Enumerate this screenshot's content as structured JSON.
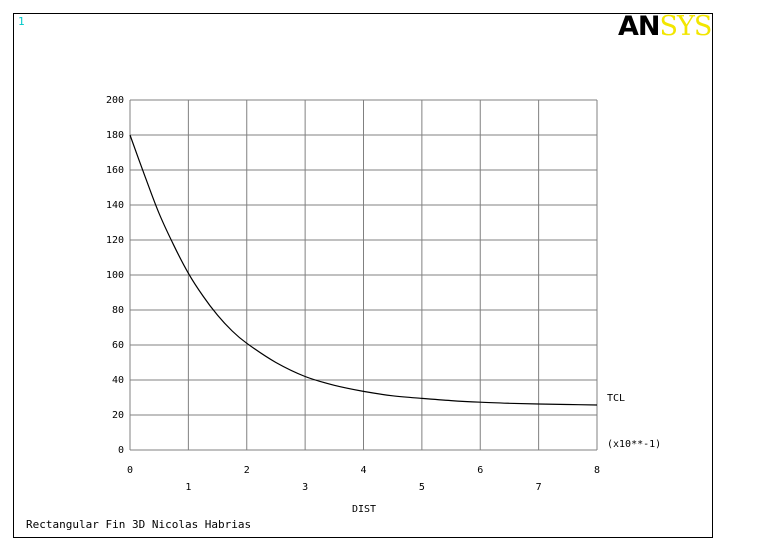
{
  "window_number": "1",
  "logo": {
    "part1": "AN",
    "part2": "SYS",
    "accent_color": "#f2e600"
  },
  "colors": {
    "window_number": "#00c8c8",
    "grid": "#808080",
    "curve": "#000000"
  },
  "footer_caption": "Rectangular Fin 3D Nicolas Habrias",
  "chart_data": {
    "type": "line",
    "xlabel": "DIST",
    "x_multiplier_label": "(x10**-1)",
    "xlim": [
      0,
      8
    ],
    "ylim": [
      0,
      200
    ],
    "x_ticks_upper": [
      "0",
      "2",
      "4",
      "6",
      "8"
    ],
    "x_ticks_lower": [
      "1",
      "3",
      "5",
      "7"
    ],
    "y_ticks": [
      "0",
      "20",
      "40",
      "60",
      "80",
      "100",
      "120",
      "140",
      "160",
      "180",
      "200"
    ],
    "grid": true,
    "series": [
      {
        "name": "TCL",
        "x": [
          0,
          0.25,
          0.5,
          0.75,
          1,
          1.25,
          1.5,
          1.75,
          2,
          2.5,
          3,
          3.5,
          4,
          4.5,
          5,
          5.5,
          6,
          6.5,
          7,
          7.5,
          8
        ],
        "y": [
          180,
          157,
          135,
          117,
          101,
          88,
          77,
          68,
          61,
          50,
          42,
          37,
          33.5,
          31,
          29.5,
          28.2,
          27.3,
          26.7,
          26.3,
          26,
          25.7
        ]
      }
    ]
  }
}
